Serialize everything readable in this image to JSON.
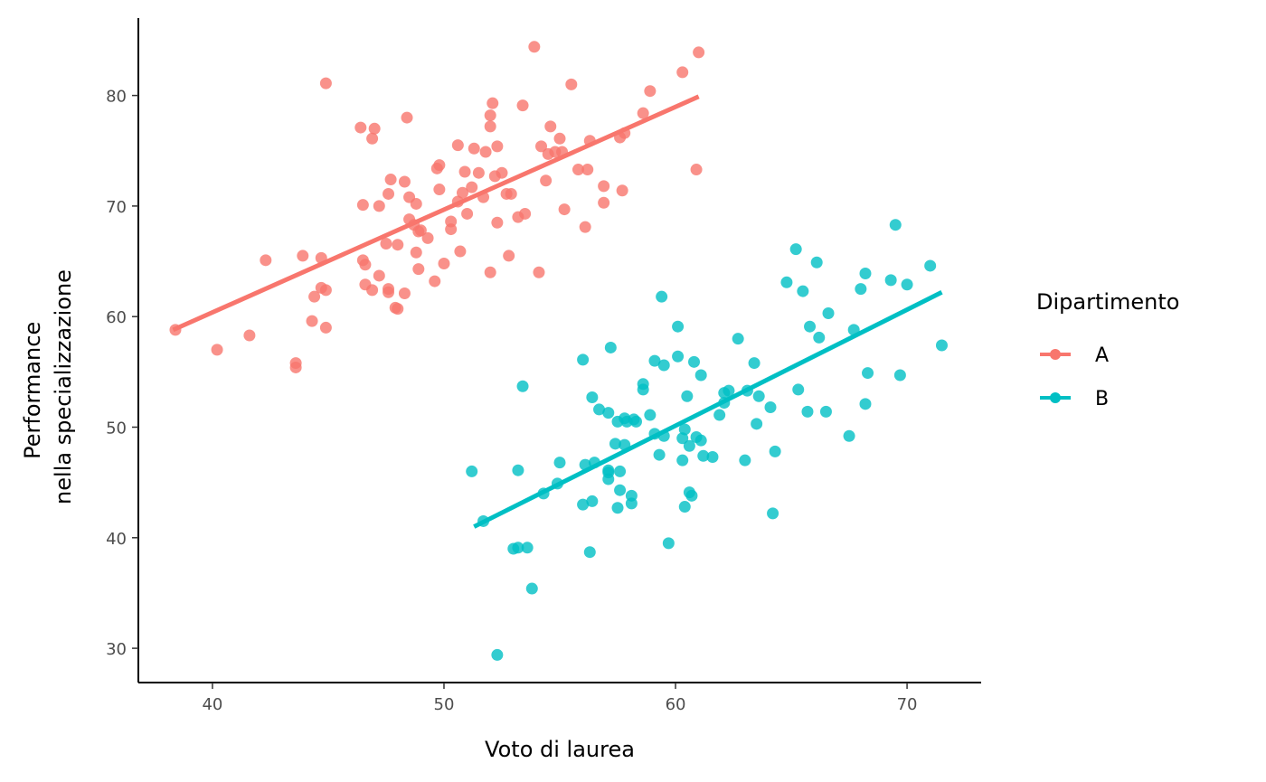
{
  "chart_data": {
    "type": "scatter",
    "title": "",
    "xlabel": "Voto di laurea",
    "ylabel": [
      "Performance",
      "nella specializzazione"
    ],
    "xlim": [
      36.8,
      73.2
    ],
    "ylim": [
      26.9,
      87.0
    ],
    "x_ticks": [
      40,
      50,
      60,
      70
    ],
    "y_ticks": [
      30,
      40,
      50,
      60,
      70,
      80
    ],
    "grid": false,
    "legend": {
      "title": "Dipartimento",
      "position": "right"
    },
    "series": [
      {
        "name": "A",
        "color": "#F8766D",
        "trend": {
          "x": [
            38.3,
            61.0
          ],
          "y": [
            58.8,
            79.9
          ]
        },
        "points": [
          [
            38.4,
            58.8
          ],
          [
            40.2,
            57.0
          ],
          [
            41.6,
            58.3
          ],
          [
            42.3,
            65.1
          ],
          [
            43.6,
            55.8
          ],
          [
            43.6,
            55.4
          ],
          [
            43.9,
            65.5
          ],
          [
            44.3,
            59.6
          ],
          [
            44.4,
            61.8
          ],
          [
            44.7,
            62.6
          ],
          [
            44.7,
            65.3
          ],
          [
            44.9,
            62.4
          ],
          [
            44.9,
            59.0
          ],
          [
            44.9,
            81.1
          ],
          [
            46.4,
            77.1
          ],
          [
            46.5,
            65.1
          ],
          [
            46.5,
            70.1
          ],
          [
            46.6,
            62.9
          ],
          [
            46.6,
            64.7
          ],
          [
            46.9,
            76.1
          ],
          [
            46.9,
            62.4
          ],
          [
            47.0,
            77.0
          ],
          [
            47.2,
            70.0
          ],
          [
            47.2,
            63.7
          ],
          [
            47.5,
            66.6
          ],
          [
            47.6,
            62.5
          ],
          [
            47.6,
            62.2
          ],
          [
            47.6,
            71.1
          ],
          [
            47.7,
            72.4
          ],
          [
            47.9,
            60.8
          ],
          [
            48.0,
            60.7
          ],
          [
            48.0,
            66.5
          ],
          [
            48.3,
            72.2
          ],
          [
            48.3,
            62.1
          ],
          [
            48.4,
            78.0
          ],
          [
            48.5,
            70.8
          ],
          [
            48.5,
            68.8
          ],
          [
            48.7,
            68.3
          ],
          [
            48.8,
            70.2
          ],
          [
            48.8,
            65.8
          ],
          [
            48.9,
            67.7
          ],
          [
            48.9,
            64.3
          ],
          [
            49.0,
            67.8
          ],
          [
            49.3,
            67.1
          ],
          [
            49.6,
            63.2
          ],
          [
            49.7,
            73.4
          ],
          [
            49.8,
            73.7
          ],
          [
            49.8,
            71.5
          ],
          [
            50.0,
            64.8
          ],
          [
            50.3,
            67.9
          ],
          [
            50.3,
            68.6
          ],
          [
            50.6,
            70.4
          ],
          [
            50.6,
            75.5
          ],
          [
            50.7,
            65.9
          ],
          [
            50.8,
            71.2
          ],
          [
            50.9,
            73.1
          ],
          [
            51.0,
            69.3
          ],
          [
            51.2,
            71.7
          ],
          [
            51.3,
            75.2
          ],
          [
            51.5,
            73.0
          ],
          [
            51.7,
            70.8
          ],
          [
            51.8,
            74.9
          ],
          [
            52.0,
            78.2
          ],
          [
            52.0,
            77.2
          ],
          [
            52.1,
            79.3
          ],
          [
            52.0,
            64.0
          ],
          [
            52.2,
            72.7
          ],
          [
            52.3,
            75.4
          ],
          [
            52.3,
            68.5
          ],
          [
            52.5,
            73.0
          ],
          [
            52.7,
            71.1
          ],
          [
            52.8,
            65.5
          ],
          [
            52.9,
            71.1
          ],
          [
            53.2,
            69.0
          ],
          [
            53.4,
            79.1
          ],
          [
            53.5,
            69.3
          ],
          [
            53.9,
            84.4
          ],
          [
            54.1,
            64.0
          ],
          [
            54.2,
            75.4
          ],
          [
            54.4,
            72.3
          ],
          [
            54.5,
            74.7
          ],
          [
            54.6,
            77.2
          ],
          [
            54.8,
            74.9
          ],
          [
            55.0,
            76.1
          ],
          [
            55.1,
            74.9
          ],
          [
            55.2,
            69.7
          ],
          [
            55.5,
            81.0
          ],
          [
            55.8,
            73.3
          ],
          [
            56.1,
            68.1
          ],
          [
            56.2,
            73.3
          ],
          [
            56.3,
            75.9
          ],
          [
            56.9,
            70.3
          ],
          [
            56.9,
            71.8
          ],
          [
            57.6,
            76.2
          ],
          [
            57.7,
            71.4
          ],
          [
            57.8,
            76.6
          ],
          [
            58.6,
            78.4
          ],
          [
            58.9,
            80.4
          ],
          [
            60.3,
            82.1
          ],
          [
            60.9,
            73.3
          ],
          [
            61.0,
            83.9
          ]
        ]
      },
      {
        "name": "B",
        "color": "#00BFC4",
        "trend": {
          "x": [
            51.3,
            71.5
          ],
          "y": [
            41.0,
            62.2
          ]
        },
        "points": [
          [
            51.2,
            46.0
          ],
          [
            51.7,
            41.5
          ],
          [
            53.0,
            39.0
          ],
          [
            53.2,
            39.1
          ],
          [
            53.2,
            46.1
          ],
          [
            53.4,
            53.7
          ],
          [
            53.6,
            39.1
          ],
          [
            53.8,
            35.4
          ],
          [
            52.3,
            29.4
          ],
          [
            54.3,
            44.0
          ],
          [
            54.9,
            44.9
          ],
          [
            55.0,
            46.8
          ],
          [
            56.0,
            56.1
          ],
          [
            56.0,
            43.0
          ],
          [
            56.1,
            46.6
          ],
          [
            56.3,
            38.7
          ],
          [
            56.4,
            43.3
          ],
          [
            56.4,
            52.7
          ],
          [
            56.5,
            46.8
          ],
          [
            56.7,
            51.6
          ],
          [
            57.1,
            45.9
          ],
          [
            57.1,
            46.1
          ],
          [
            57.1,
            45.3
          ],
          [
            57.1,
            51.3
          ],
          [
            57.2,
            57.2
          ],
          [
            57.4,
            48.5
          ],
          [
            57.5,
            50.5
          ],
          [
            57.5,
            42.7
          ],
          [
            57.6,
            44.3
          ],
          [
            57.6,
            46.0
          ],
          [
            57.8,
            50.8
          ],
          [
            57.8,
            48.4
          ],
          [
            57.9,
            50.5
          ],
          [
            58.1,
            43.8
          ],
          [
            58.1,
            43.1
          ],
          [
            58.2,
            50.7
          ],
          [
            58.3,
            50.5
          ],
          [
            58.6,
            53.4
          ],
          [
            58.6,
            53.9
          ],
          [
            58.9,
            51.1
          ],
          [
            59.1,
            49.4
          ],
          [
            59.1,
            56.0
          ],
          [
            59.3,
            47.5
          ],
          [
            59.4,
            61.8
          ],
          [
            59.5,
            55.6
          ],
          [
            59.5,
            49.2
          ],
          [
            59.7,
            39.5
          ],
          [
            60.1,
            59.1
          ],
          [
            60.1,
            56.4
          ],
          [
            60.3,
            47.0
          ],
          [
            60.3,
            49.0
          ],
          [
            60.4,
            42.8
          ],
          [
            60.4,
            49.8
          ],
          [
            60.5,
            52.8
          ],
          [
            60.6,
            48.3
          ],
          [
            60.6,
            44.1
          ],
          [
            60.7,
            43.8
          ],
          [
            60.8,
            55.9
          ],
          [
            60.9,
            49.1
          ],
          [
            61.1,
            54.7
          ],
          [
            61.1,
            48.8
          ],
          [
            61.2,
            47.4
          ],
          [
            61.6,
            47.3
          ],
          [
            61.9,
            51.1
          ],
          [
            62.1,
            52.2
          ],
          [
            62.1,
            53.1
          ],
          [
            62.3,
            53.3
          ],
          [
            62.7,
            58.0
          ],
          [
            63.0,
            47.0
          ],
          [
            63.1,
            53.3
          ],
          [
            63.4,
            55.8
          ],
          [
            63.5,
            50.3
          ],
          [
            63.6,
            52.8
          ],
          [
            64.1,
            51.8
          ],
          [
            64.2,
            42.2
          ],
          [
            64.3,
            47.8
          ],
          [
            64.8,
            63.1
          ],
          [
            65.2,
            66.1
          ],
          [
            65.3,
            53.4
          ],
          [
            65.5,
            62.3
          ],
          [
            65.7,
            51.4
          ],
          [
            65.8,
            59.1
          ],
          [
            66.1,
            64.9
          ],
          [
            66.2,
            58.1
          ],
          [
            66.5,
            51.4
          ],
          [
            66.6,
            60.3
          ],
          [
            67.5,
            49.2
          ],
          [
            67.7,
            58.8
          ],
          [
            68.0,
            62.5
          ],
          [
            68.2,
            63.9
          ],
          [
            68.2,
            52.1
          ],
          [
            68.3,
            54.9
          ],
          [
            69.3,
            63.3
          ],
          [
            69.5,
            68.3
          ],
          [
            69.7,
            54.7
          ],
          [
            70.0,
            62.9
          ],
          [
            71.0,
            64.6
          ],
          [
            71.5,
            57.4
          ]
        ]
      }
    ]
  }
}
